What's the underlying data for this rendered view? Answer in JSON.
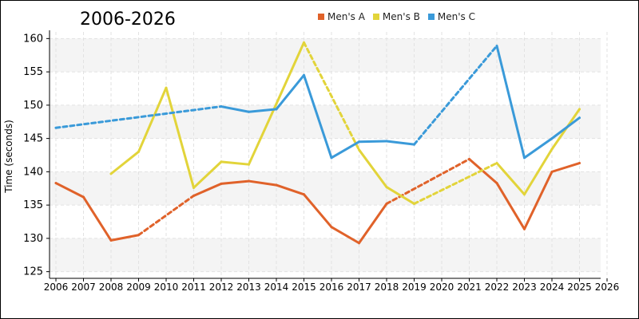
{
  "chart_data": {
    "type": "line",
    "title": "2006-2026",
    "ylabel": "Time (seconds)",
    "xlabel": "",
    "xlim": [
      2006,
      2026
    ],
    "ylim": [
      124,
      161
    ],
    "x_ticks": [
      2006,
      2007,
      2008,
      2009,
      2010,
      2011,
      2012,
      2013,
      2014,
      2015,
      2016,
      2017,
      2018,
      2019,
      2020,
      2021,
      2022,
      2023,
      2024,
      2025,
      2026
    ],
    "y_ticks": [
      125,
      130,
      135,
      140,
      145,
      150,
      155,
      160
    ],
    "legend_position": "top",
    "grid": true,
    "series": [
      {
        "name": "Men's A",
        "color": "#e0622a",
        "points": [
          {
            "x": 2006,
            "y": 138.3,
            "seg": "solid"
          },
          {
            "x": 2007,
            "y": 136.2,
            "seg": "solid"
          },
          {
            "x": 2008,
            "y": 129.7,
            "seg": "solid"
          },
          {
            "x": 2009,
            "y": 130.5,
            "seg": "solid"
          },
          {
            "x": 2011,
            "y": 136.4,
            "seg": "dashed"
          },
          {
            "x": 2012,
            "y": 138.2,
            "seg": "solid"
          },
          {
            "x": 2013,
            "y": 138.6,
            "seg": "solid"
          },
          {
            "x": 2014,
            "y": 138.0,
            "seg": "solid"
          },
          {
            "x": 2015,
            "y": 136.6,
            "seg": "solid"
          },
          {
            "x": 2016,
            "y": 131.7,
            "seg": "solid"
          },
          {
            "x": 2017,
            "y": 129.3,
            "seg": "solid"
          },
          {
            "x": 2018,
            "y": 135.2,
            "seg": "solid"
          },
          {
            "x": 2021,
            "y": 141.9,
            "seg": "dashed"
          },
          {
            "x": 2022,
            "y": 138.3,
            "seg": "solid"
          },
          {
            "x": 2023,
            "y": 131.4,
            "seg": "solid"
          },
          {
            "x": 2024,
            "y": 140.0,
            "seg": "solid"
          },
          {
            "x": 2025,
            "y": 141.3,
            "seg": "solid"
          }
        ]
      },
      {
        "name": "Men's B",
        "color": "#e2d43a",
        "points": [
          {
            "x": 2008,
            "y": 139.7,
            "seg": "solid"
          },
          {
            "x": 2009,
            "y": 143.0,
            "seg": "solid"
          },
          {
            "x": 2010,
            "y": 152.6,
            "seg": "solid"
          },
          {
            "x": 2011,
            "y": 137.6,
            "seg": "solid"
          },
          {
            "x": 2012,
            "y": 141.5,
            "seg": "solid"
          },
          {
            "x": 2013,
            "y": 141.1,
            "seg": "solid"
          },
          {
            "x": 2014,
            "y": 150.2,
            "seg": "solid"
          },
          {
            "x": 2015,
            "y": 159.4,
            "seg": "solid"
          },
          {
            "x": 2017,
            "y": 143.3,
            "seg": "dashed"
          },
          {
            "x": 2018,
            "y": 137.7,
            "seg": "solid"
          },
          {
            "x": 2019,
            "y": 135.2,
            "seg": "solid"
          },
          {
            "x": 2022,
            "y": 141.3,
            "seg": "dashed"
          },
          {
            "x": 2023,
            "y": 136.6,
            "seg": "solid"
          },
          {
            "x": 2024,
            "y": 143.4,
            "seg": "solid"
          },
          {
            "x": 2025,
            "y": 149.4,
            "seg": "solid"
          }
        ]
      },
      {
        "name": "Men's C",
        "color": "#3a9ad9",
        "points": [
          {
            "x": 2006,
            "y": 146.6,
            "seg": "solid"
          },
          {
            "x": 2012,
            "y": 149.8,
            "seg": "dashed"
          },
          {
            "x": 2013,
            "y": 149.0,
            "seg": "solid"
          },
          {
            "x": 2014,
            "y": 149.4,
            "seg": "solid"
          },
          {
            "x": 2015,
            "y": 154.5,
            "seg": "solid"
          },
          {
            "x": 2016,
            "y": 142.1,
            "seg": "solid"
          },
          {
            "x": 2017,
            "y": 144.5,
            "seg": "solid"
          },
          {
            "x": 2018,
            "y": 144.6,
            "seg": "solid"
          },
          {
            "x": 2019,
            "y": 144.1,
            "seg": "solid"
          },
          {
            "x": 2022,
            "y": 158.9,
            "seg": "dashed"
          },
          {
            "x": 2023,
            "y": 142.1,
            "seg": "solid"
          },
          {
            "x": 2024,
            "y": 145.0,
            "seg": "solid"
          },
          {
            "x": 2025,
            "y": 148.1,
            "seg": "solid"
          }
        ]
      }
    ]
  }
}
